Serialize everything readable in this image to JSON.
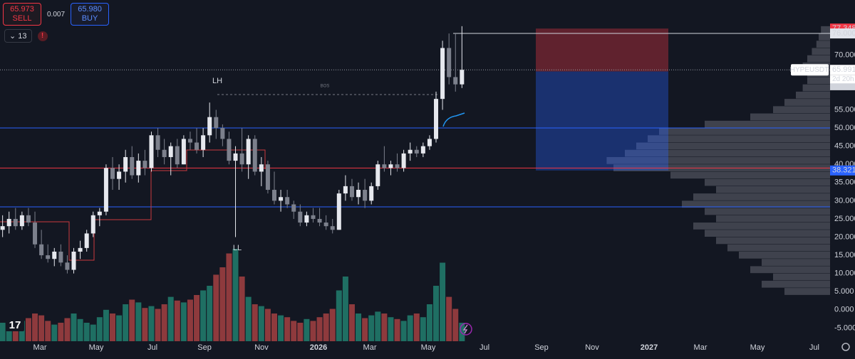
{
  "widget": {
    "sell_price": "65.973",
    "sell_label": "SELL",
    "spread": "0.007",
    "buy_price": "65.980",
    "buy_label": "BUY",
    "indicator_count": "13"
  },
  "chart_data": {
    "type": "candlestick",
    "symbol": "HYPEUSDT",
    "countdown": "2d 20h",
    "up_color": "#e6e8ee",
    "down_color": "#7c808c",
    "volume_up_color": "#1f6f63",
    "volume_down_color": "#8e3a3d",
    "x": [
      0,
      1,
      2,
      3,
      4,
      5,
      6,
      7,
      8,
      9,
      10,
      11,
      12,
      13,
      14,
      15,
      16,
      17,
      18,
      19,
      20,
      21,
      22,
      23,
      24,
      25,
      26,
      27,
      28,
      29,
      30,
      31,
      32,
      33,
      34,
      35,
      36,
      37,
      38,
      39,
      40,
      41,
      42,
      43,
      44,
      45,
      46,
      47,
      48,
      49,
      50,
      51,
      52,
      53,
      54,
      55,
      56,
      57,
      58,
      59,
      60,
      61,
      62,
      63,
      64,
      65,
      66,
      67,
      68,
      69,
      70,
      71
    ],
    "open": [
      22,
      23,
      25,
      23,
      26,
      24,
      18,
      15,
      14,
      16,
      13,
      11,
      16,
      17,
      21,
      26,
      27,
      39,
      36,
      38,
      42,
      37,
      41,
      39,
      48,
      44,
      42,
      45,
      40,
      47,
      46,
      44,
      48,
      53,
      50,
      47,
      41,
      43,
      40,
      47,
      38,
      40,
      33,
      30,
      31,
      29,
      27,
      24,
      26,
      25,
      24,
      23,
      22,
      32,
      34,
      31,
      33,
      30,
      34,
      40,
      39,
      40,
      39,
      43,
      44,
      43,
      45,
      47,
      58,
      72,
      64,
      62
    ],
    "high": [
      26,
      27,
      28,
      27,
      28,
      27,
      22,
      18,
      17,
      18,
      15,
      17,
      19,
      22,
      27,
      28,
      40,
      42,
      40,
      44,
      45,
      43,
      44,
      49,
      50,
      47,
      46,
      47,
      48,
      49,
      50,
      50,
      57,
      55,
      51,
      49,
      45,
      50,
      48,
      48,
      42,
      41,
      38,
      33,
      33,
      30,
      29,
      27,
      28,
      28,
      26,
      25,
      33,
      37,
      36,
      35,
      36,
      35,
      41,
      45,
      41,
      43,
      44,
      46,
      45,
      46,
      48,
      60,
      74,
      76,
      76,
      78
    ],
    "low": [
      20,
      21,
      22,
      22,
      23,
      17,
      14,
      13,
      12,
      12,
      10,
      10,
      14,
      16,
      20,
      23,
      26,
      33,
      33,
      35,
      36,
      35,
      37,
      38,
      42,
      40,
      37,
      39,
      40,
      44,
      43,
      42,
      46,
      47,
      45,
      40,
      20,
      38,
      36,
      37,
      34,
      32,
      29,
      27,
      28,
      25,
      23,
      23,
      24,
      23,
      22,
      21,
      22,
      30,
      30,
      29,
      28,
      29,
      33,
      38,
      37,
      38,
      38,
      41,
      42,
      42,
      44,
      46,
      55,
      62,
      60,
      61
    ],
    "close": [
      23,
      25,
      23,
      26,
      24,
      18,
      15,
      14,
      16,
      13,
      11,
      16,
      17,
      21,
      26,
      27,
      39,
      36,
      38,
      42,
      37,
      41,
      39,
      48,
      44,
      42,
      45,
      40,
      47,
      46,
      44,
      48,
      53,
      50,
      47,
      41,
      43,
      40,
      47,
      38,
      40,
      33,
      30,
      31,
      29,
      27,
      24,
      26,
      25,
      24,
      23,
      22,
      32,
      34,
      31,
      33,
      30,
      34,
      40,
      39,
      40,
      39,
      43,
      44,
      43,
      45,
      47,
      58,
      72,
      64,
      62,
      66
    ],
    "volume": [
      20,
      15,
      18,
      22,
      25,
      30,
      28,
      22,
      18,
      20,
      25,
      30,
      24,
      20,
      18,
      26,
      34,
      30,
      28,
      40,
      45,
      42,
      36,
      38,
      35,
      40,
      48,
      44,
      42,
      45,
      50,
      55,
      60,
      72,
      80,
      95,
      100,
      70,
      48,
      40,
      38,
      35,
      30,
      28,
      26,
      22,
      20,
      24,
      22,
      26,
      30,
      35,
      55,
      70,
      40,
      30,
      25,
      28,
      32,
      30,
      26,
      24,
      22,
      28,
      30,
      26,
      40,
      60,
      85,
      48,
      35,
      20
    ],
    "volume_lim": [
      0,
      100
    ],
    "xlim": [
      -0.4,
      127.9
    ],
    "ylim": [
      -10.2,
      85.2
    ],
    "xticks": [
      {
        "value": 5.77,
        "label": "Mar"
      },
      {
        "value": 14.47,
        "label": "May"
      },
      {
        "value": 23.17,
        "label": "Jul"
      },
      {
        "value": 31.21,
        "label": "Sep"
      },
      {
        "value": 40.02,
        "label": "Nov"
      },
      {
        "value": 48.83,
        "label": "2026"
      },
      {
        "value": 56.76,
        "label": "Mar"
      },
      {
        "value": 65.79,
        "label": "May"
      },
      {
        "value": 74.49,
        "label": "Jul"
      },
      {
        "value": 83.3,
        "label": "Sep"
      },
      {
        "value": 91.12,
        "label": "Nov"
      },
      {
        "value": 99.93,
        "label": "2027"
      },
      {
        "value": 107.86,
        "label": "Mar"
      },
      {
        "value": 116.67,
        "label": "May"
      },
      {
        "value": 125.47,
        "label": "Jul"
      }
    ],
    "yticks": [
      {
        "value": 70,
        "label": "70.000"
      },
      {
        "value": 55,
        "label": "55.000"
      },
      {
        "value": 50,
        "label": "50.000"
      },
      {
        "value": 45,
        "label": "45.000"
      },
      {
        "value": 40,
        "label": "40.000"
      },
      {
        "value": 35,
        "label": "35.000"
      },
      {
        "value": 30,
        "label": "30.000"
      },
      {
        "value": 25,
        "label": "25.000"
      },
      {
        "value": 20,
        "label": "20.000"
      },
      {
        "value": 15,
        "label": "15.000"
      },
      {
        "value": 10,
        "label": "10.000"
      },
      {
        "value": 5,
        "label": "5.000"
      },
      {
        "value": 0,
        "label": "0.000"
      },
      {
        "value": -5,
        "label": "-5.000"
      }
    ],
    "levels": [
      {
        "value": 50,
        "color": "#2962ff"
      },
      {
        "value": 39,
        "color": "#f23645"
      },
      {
        "value": 28.3,
        "color": "#2962ff"
      }
    ],
    "high_line": {
      "value": 76,
      "label": "76.000"
    },
    "last_price": 65.991,
    "position": {
      "stop": 77.348,
      "entry": 65.557,
      "target": 38.321
    },
    "profile": {
      "levels": [
        4,
        6,
        8,
        10,
        12,
        14,
        16,
        18,
        20,
        22,
        24,
        26,
        28,
        30,
        32,
        34,
        36,
        38,
        40,
        42,
        44,
        46,
        48,
        50,
        52,
        54,
        56,
        58,
        60,
        62,
        64,
        66,
        68,
        70,
        72,
        74,
        76
      ],
      "values": [
        20,
        30,
        25,
        35,
        30,
        40,
        45,
        50,
        55,
        60,
        50,
        55,
        65,
        60,
        50,
        55,
        70,
        95,
        98,
        90,
        85,
        80,
        75,
        55,
        35,
        25,
        20,
        15,
        12,
        10,
        10,
        12,
        10,
        8,
        6,
        5,
        4
      ],
      "lim": [
        0,
        100
      ]
    },
    "annotations": {
      "lh": "LH",
      "ll": "LL",
      "bos": "BOS"
    }
  }
}
